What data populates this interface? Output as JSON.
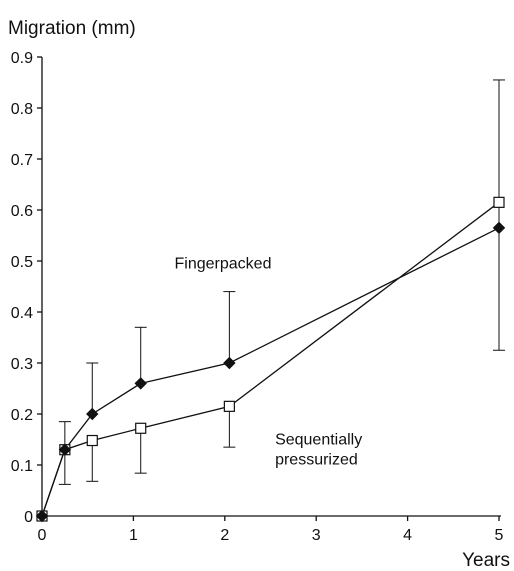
{
  "chart_data": {
    "type": "line",
    "ylabel": "Migration (mm)",
    "xlabel": "Years",
    "xlim": [
      0,
      5
    ],
    "ylim": [
      0,
      0.9
    ],
    "xticks": [
      0,
      1,
      2,
      3,
      4,
      5
    ],
    "xtick_labels": [
      "0",
      "1",
      "2",
      "3",
      "4",
      "5"
    ],
    "yticks": [
      0,
      0.1,
      0.2,
      0.3,
      0.4,
      0.5,
      0.6,
      0.7,
      0.8,
      0.9
    ],
    "ytick_labels": [
      "0",
      "0.1",
      "0.2",
      "0.3",
      "0.4",
      "0.5",
      "0.6",
      "0.7",
      "0.8",
      "0.9"
    ],
    "grid": false,
    "series": [
      {
        "name": "Fingerpacked",
        "marker": "filled-diamond",
        "color": "#111111",
        "x": [
          0,
          0.25,
          0.55,
          1.08,
          2.05,
          5.0
        ],
        "y": [
          0,
          0.13,
          0.2,
          0.26,
          0.3,
          0.565
        ],
        "err_up": [
          0,
          0,
          0.1,
          0.11,
          0.14,
          0
        ],
        "err_down": [
          0,
          0,
          0,
          0,
          0,
          0
        ]
      },
      {
        "name": "Sequentially pressurized",
        "marker": "open-square",
        "color": "#111111",
        "x": [
          0,
          0.25,
          0.55,
          1.08,
          2.05,
          5.0
        ],
        "y": [
          0,
          0.13,
          0.148,
          0.172,
          0.215,
          0.615
        ],
        "err_up": [
          0,
          0.055,
          0,
          0,
          0,
          0.24
        ],
        "err_down": [
          0,
          0.068,
          0.08,
          0.088,
          0.08,
          0.29
        ]
      }
    ],
    "annotations": [
      {
        "label_lines": [
          "Fingerpacked"
        ],
        "x": 1.45,
        "y": 0.485
      },
      {
        "label_lines": [
          "Sequentially",
          "pressurized"
        ],
        "x": 2.55,
        "y": 0.14
      }
    ]
  }
}
